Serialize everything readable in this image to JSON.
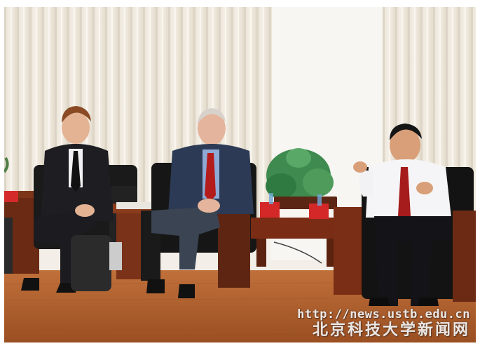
{
  "watermark": {
    "url": "http://news.ustb.edu.cn",
    "org": "北京科技大学新闻网"
  }
}
